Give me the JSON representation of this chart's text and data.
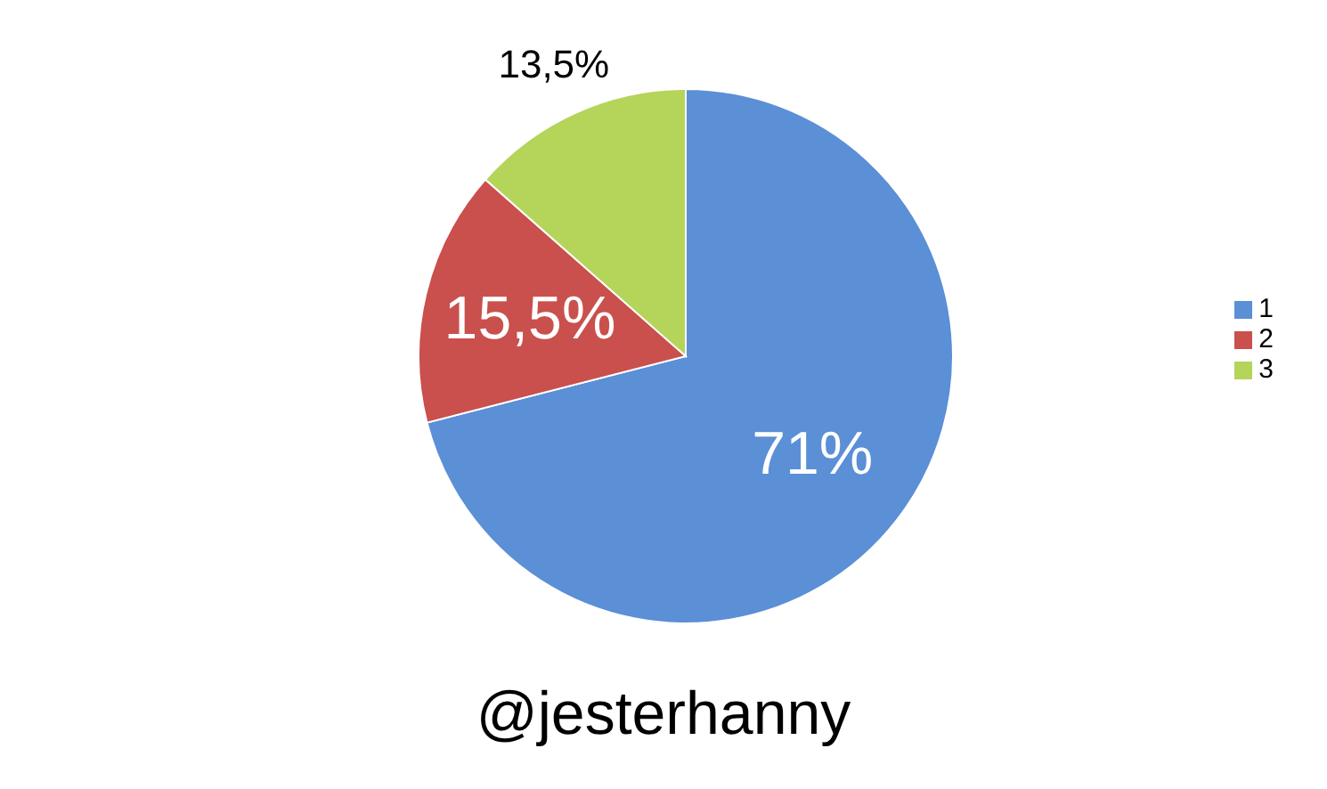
{
  "chart_data": {
    "type": "pie",
    "categories": [
      "1",
      "2",
      "3"
    ],
    "values": [
      71,
      15.5,
      13.5
    ],
    "colors": [
      "#5b8fd6",
      "#c9504d",
      "#b5d45a"
    ],
    "value_labels": [
      "71%",
      "15,5%",
      "13,5%"
    ],
    "legend": "right",
    "annotations": [
      "@jesterhanny"
    ]
  }
}
